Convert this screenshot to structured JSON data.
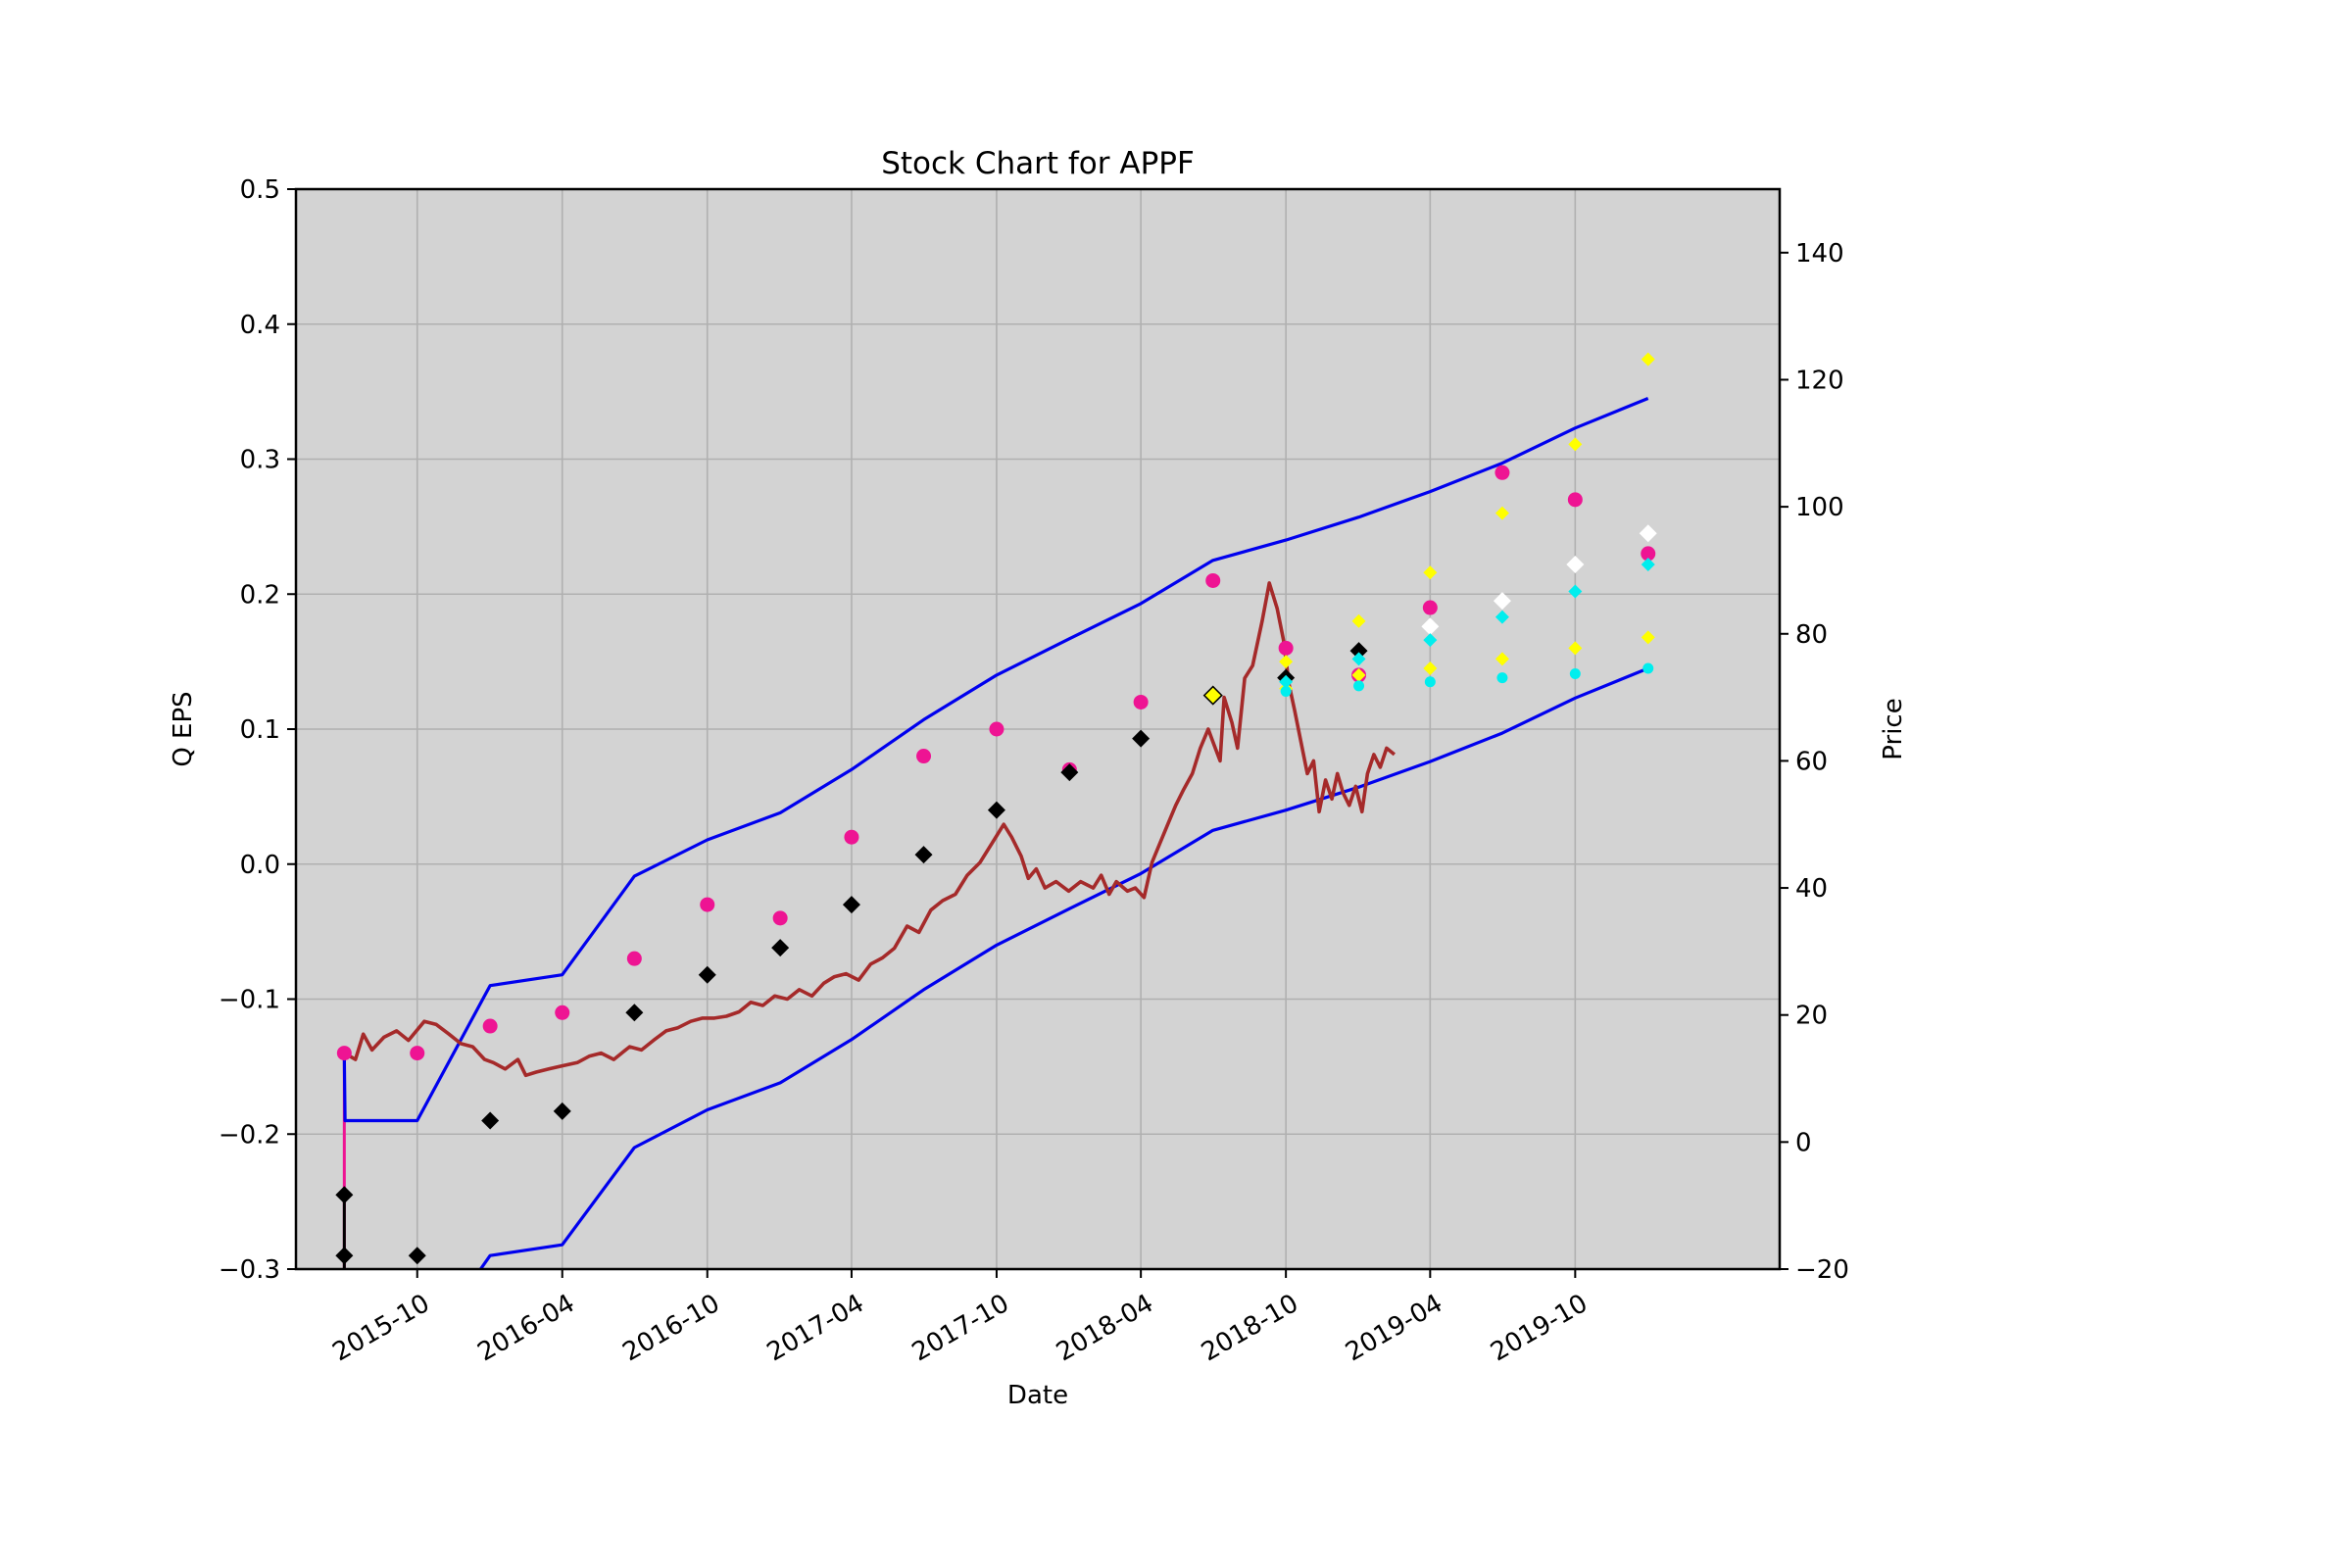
{
  "chart_data": {
    "type": "line",
    "title": "Stock Chart for APPF",
    "xlabel": "Date",
    "ylabel": "Q EPS",
    "y2label": "Price",
    "ylim": [
      -0.3,
      0.5
    ],
    "y2lim": [
      -20,
      150
    ],
    "xlim": [
      "2015-05-01",
      "2020-06-15"
    ],
    "grid": true,
    "background": "#d3d3d3",
    "y_ticks": [
      -0.3,
      -0.2,
      -0.1,
      0.0,
      0.1,
      0.2,
      0.3,
      0.4,
      0.5
    ],
    "y_tick_labels": [
      "−0.3",
      "−0.2",
      "−0.1",
      "0.0",
      "0.1",
      "0.2",
      "0.3",
      "0.4",
      "0.5"
    ],
    "y2_ticks": [
      -20,
      0,
      20,
      40,
      60,
      80,
      100,
      120,
      140
    ],
    "y2_tick_labels": [
      "−20",
      "0",
      "20",
      "40",
      "60",
      "80",
      "100",
      "120",
      "140"
    ],
    "x_ticks": [
      "2015-10-01",
      "2016-04-01",
      "2016-10-01",
      "2017-04-01",
      "2017-10-01",
      "2018-04-01",
      "2018-10-01",
      "2019-04-01",
      "2019-10-01"
    ],
    "x_tick_labels": [
      "2015-10",
      "2016-04",
      "2016-10",
      "2017-04",
      "2017-10",
      "2018-04",
      "2018-10",
      "2019-04",
      "2019-10"
    ],
    "series": [
      {
        "role": "eps_upper_band",
        "axis": "left",
        "color": "#0000ee",
        "kind": "line",
        "points": [
          [
            "2015-07-01",
            -0.14
          ],
          [
            "2015-07-02",
            -0.19
          ],
          [
            "2015-10-01",
            -0.19
          ],
          [
            "2016-01-01",
            -0.09
          ],
          [
            "2016-04-01",
            -0.082
          ],
          [
            "2016-07-01",
            -0.009
          ],
          [
            "2016-10-01",
            0.018
          ],
          [
            "2017-01-01",
            0.038
          ],
          [
            "2017-04-01",
            0.07
          ],
          [
            "2017-07-01",
            0.107
          ],
          [
            "2017-10-01",
            0.14
          ],
          [
            "2018-01-01",
            0.167
          ],
          [
            "2018-04-01",
            0.193
          ],
          [
            "2018-07-01",
            0.225
          ],
          [
            "2018-10-01",
            0.24
          ],
          [
            "2019-01-01",
            0.257
          ],
          [
            "2019-04-01",
            0.276
          ],
          [
            "2019-07-01",
            0.297
          ],
          [
            "2019-10-01",
            0.323
          ],
          [
            "2020-01-01",
            0.345
          ]
        ]
      },
      {
        "role": "eps_lower_band",
        "axis": "left",
        "color": "#0000ee",
        "kind": "line",
        "points": [
          [
            "2015-12-20",
            -0.3
          ],
          [
            "2016-01-01",
            -0.29
          ],
          [
            "2016-04-01",
            -0.282
          ],
          [
            "2016-07-01",
            -0.21
          ],
          [
            "2016-10-01",
            -0.182
          ],
          [
            "2017-01-01",
            -0.162
          ],
          [
            "2017-04-01",
            -0.13
          ],
          [
            "2017-07-01",
            -0.093
          ],
          [
            "2017-10-01",
            -0.06
          ],
          [
            "2018-01-01",
            -0.033
          ],
          [
            "2018-04-01",
            -0.007
          ],
          [
            "2018-07-01",
            0.025
          ],
          [
            "2018-10-01",
            0.04
          ],
          [
            "2019-01-01",
            0.057
          ],
          [
            "2019-04-01",
            0.076
          ],
          [
            "2019-07-01",
            0.097
          ],
          [
            "2019-10-01",
            0.123
          ],
          [
            "2020-01-01",
            0.145
          ]
        ]
      },
      {
        "role": "price",
        "axis": "right",
        "color": "#a52a2a",
        "kind": "line",
        "points": [
          [
            "2015-07-01",
            14
          ],
          [
            "2015-07-15",
            13
          ],
          [
            "2015-07-25",
            17
          ],
          [
            "2015-08-05",
            14.5
          ],
          [
            "2015-08-20",
            16.5
          ],
          [
            "2015-09-05",
            17.5
          ],
          [
            "2015-09-20",
            16
          ],
          [
            "2015-10-10",
            19
          ],
          [
            "2015-10-25",
            18.5
          ],
          [
            "2015-11-10",
            17
          ],
          [
            "2015-11-25",
            15.5
          ],
          [
            "2015-12-10",
            15
          ],
          [
            "2015-12-25",
            13
          ],
          [
            "2016-01-05",
            12.5
          ],
          [
            "2016-01-20",
            11.5
          ],
          [
            "2016-02-05",
            13
          ],
          [
            "2016-02-15",
            10.5
          ],
          [
            "2016-02-28",
            11
          ],
          [
            "2016-03-15",
            11.5
          ],
          [
            "2016-04-01",
            12
          ],
          [
            "2016-04-20",
            12.5
          ],
          [
            "2016-05-05",
            13.5
          ],
          [
            "2016-05-20",
            14
          ],
          [
            "2016-06-05",
            13
          ],
          [
            "2016-06-25",
            15
          ],
          [
            "2016-07-10",
            14.5
          ],
          [
            "2016-07-25",
            16
          ],
          [
            "2016-08-10",
            17.5
          ],
          [
            "2016-08-25",
            18
          ],
          [
            "2016-09-10",
            19
          ],
          [
            "2016-09-25",
            19.5
          ],
          [
            "2016-10-10",
            19.5
          ],
          [
            "2016-10-25",
            19.8
          ],
          [
            "2016-11-10",
            20.5
          ],
          [
            "2016-11-25",
            22
          ],
          [
            "2016-12-10",
            21.5
          ],
          [
            "2016-12-25",
            23
          ],
          [
            "2017-01-10",
            22.5
          ],
          [
            "2017-01-25",
            24
          ],
          [
            "2017-02-10",
            23
          ],
          [
            "2017-02-25",
            25
          ],
          [
            "2017-03-10",
            26
          ],
          [
            "2017-03-25",
            26.5
          ],
          [
            "2017-04-10",
            25.5
          ],
          [
            "2017-04-25",
            28
          ],
          [
            "2017-05-10",
            29
          ],
          [
            "2017-05-25",
            30.5
          ],
          [
            "2017-06-10",
            34
          ],
          [
            "2017-06-25",
            33
          ],
          [
            "2017-07-10",
            36.5
          ],
          [
            "2017-07-25",
            38
          ],
          [
            "2017-08-10",
            39
          ],
          [
            "2017-08-25",
            42
          ],
          [
            "2017-09-10",
            44
          ],
          [
            "2017-09-25",
            47
          ],
          [
            "2017-10-10",
            50
          ],
          [
            "2017-10-20",
            48
          ],
          [
            "2017-11-01",
            45
          ],
          [
            "2017-11-10",
            41.5
          ],
          [
            "2017-11-20",
            43
          ],
          [
            "2017-12-01",
            40
          ],
          [
            "2017-12-15",
            41
          ],
          [
            "2017-12-31",
            39.5
          ],
          [
            "2018-01-15",
            41
          ],
          [
            "2018-01-31",
            40
          ],
          [
            "2018-02-10",
            42
          ],
          [
            "2018-02-20",
            39
          ],
          [
            "2018-03-01",
            41
          ],
          [
            "2018-03-15",
            39.5
          ],
          [
            "2018-03-25",
            40
          ],
          [
            "2018-04-05",
            38.5
          ],
          [
            "2018-04-15",
            44
          ],
          [
            "2018-04-25",
            47
          ],
          [
            "2018-05-05",
            50
          ],
          [
            "2018-05-15",
            53
          ],
          [
            "2018-05-25",
            55.5
          ],
          [
            "2018-06-05",
            58
          ],
          [
            "2018-06-15",
            62
          ],
          [
            "2018-06-25",
            65
          ],
          [
            "2018-07-01",
            63
          ],
          [
            "2018-07-10",
            60
          ],
          [
            "2018-07-15",
            70
          ],
          [
            "2018-07-25",
            66
          ],
          [
            "2018-08-01",
            62
          ],
          [
            "2018-08-10",
            73
          ],
          [
            "2018-08-20",
            75
          ],
          [
            "2018-09-01",
            82
          ],
          [
            "2018-09-10",
            88
          ],
          [
            "2018-09-20",
            84
          ],
          [
            "2018-09-28",
            79
          ],
          [
            "2018-10-05",
            72
          ],
          [
            "2018-10-12",
            68
          ],
          [
            "2018-10-20",
            63
          ],
          [
            "2018-10-28",
            58
          ],
          [
            "2018-11-05",
            60
          ],
          [
            "2018-11-12",
            52
          ],
          [
            "2018-11-20",
            57
          ],
          [
            "2018-11-28",
            54
          ],
          [
            "2018-12-05",
            58
          ],
          [
            "2018-12-12",
            55
          ],
          [
            "2018-12-20",
            53
          ],
          [
            "2018-12-28",
            56
          ],
          [
            "2019-01-05",
            52
          ],
          [
            "2019-01-12",
            58
          ],
          [
            "2019-01-20",
            61
          ],
          [
            "2019-01-28",
            59
          ],
          [
            "2019-02-05",
            62
          ],
          [
            "2019-02-15",
            61
          ]
        ]
      },
      {
        "role": "magenta_dots",
        "axis": "left",
        "color": "#ee1493",
        "kind": "circle",
        "points": [
          [
            "2015-07-01",
            -0.14
          ],
          [
            "2015-10-01",
            -0.14
          ],
          [
            "2016-01-01",
            -0.12
          ],
          [
            "2016-04-01",
            -0.11
          ],
          [
            "2016-07-01",
            -0.07
          ],
          [
            "2016-10-01",
            -0.03
          ],
          [
            "2017-01-01",
            -0.04
          ],
          [
            "2017-04-01",
            0.02
          ],
          [
            "2017-07-01",
            0.08
          ],
          [
            "2017-10-01",
            0.1
          ],
          [
            "2018-01-01",
            0.07
          ],
          [
            "2018-04-01",
            0.12
          ],
          [
            "2018-07-01",
            0.21
          ],
          [
            "2018-10-01",
            0.16
          ],
          [
            "2019-01-01",
            0.14
          ],
          [
            "2019-04-01",
            0.19
          ],
          [
            "2019-07-01",
            0.29
          ],
          [
            "2019-10-01",
            0.27
          ],
          [
            "2020-01-01",
            0.23
          ]
        ]
      },
      {
        "role": "black_diamonds",
        "axis": "left",
        "color": "#000000",
        "kind": "diamond",
        "points": [
          [
            "2015-07-01",
            -0.245
          ],
          [
            "2015-07-01",
            -0.29
          ],
          [
            "2015-10-01",
            -0.29
          ],
          [
            "2016-01-01",
            -0.19
          ],
          [
            "2016-04-01",
            -0.183
          ],
          [
            "2016-07-01",
            -0.11
          ],
          [
            "2016-10-01",
            -0.082
          ],
          [
            "2017-01-01",
            -0.062
          ],
          [
            "2017-04-01",
            -0.03
          ],
          [
            "2017-07-01",
            0.007
          ],
          [
            "2017-10-01",
            0.04
          ],
          [
            "2018-01-01",
            0.068
          ],
          [
            "2018-04-01",
            0.093
          ],
          [
            "2018-10-01",
            0.138
          ],
          [
            "2019-01-01",
            0.158
          ]
        ]
      },
      {
        "role": "yellow_diamond_outlined",
        "axis": "left",
        "color": "#ffff00",
        "kind": "diamond-outlined",
        "points": [
          [
            "2018-07-01",
            0.125
          ]
        ]
      },
      {
        "role": "yellow_high_estimate",
        "axis": "left",
        "color": "#ffff00",
        "kind": "small-diamond",
        "points": [
          [
            "2018-10-01",
            0.15
          ],
          [
            "2019-01-01",
            0.18
          ],
          [
            "2019-04-01",
            0.216
          ],
          [
            "2019-07-01",
            0.26
          ],
          [
            "2019-10-01",
            0.311
          ],
          [
            "2020-01-01",
            0.374
          ]
        ]
      },
      {
        "role": "yellow_low_estimate",
        "axis": "left",
        "color": "#ffff00",
        "kind": "small-diamond",
        "points": [
          [
            "2018-10-01",
            0.13
          ],
          [
            "2019-01-01",
            0.14
          ],
          [
            "2019-04-01",
            0.145
          ],
          [
            "2019-07-01",
            0.152
          ],
          [
            "2019-10-01",
            0.16
          ],
          [
            "2020-01-01",
            0.168
          ]
        ]
      },
      {
        "role": "white_diamonds",
        "axis": "left",
        "color": "#ffffff",
        "kind": "diamond",
        "points": [
          [
            "2019-04-01",
            0.176
          ],
          [
            "2019-07-01",
            0.195
          ],
          [
            "2019-10-01",
            0.222
          ],
          [
            "2020-01-01",
            0.245
          ]
        ]
      },
      {
        "role": "cyan_upper",
        "axis": "left",
        "color": "#00eeee",
        "kind": "small-diamond",
        "points": [
          [
            "2018-10-01",
            0.135
          ],
          [
            "2019-01-01",
            0.152
          ],
          [
            "2019-04-01",
            0.166
          ],
          [
            "2019-07-01",
            0.183
          ],
          [
            "2019-10-01",
            0.202
          ],
          [
            "2020-01-01",
            0.222
          ]
        ]
      },
      {
        "role": "cyan_lower",
        "axis": "left",
        "color": "#00eeee",
        "kind": "small-circle",
        "points": [
          [
            "2018-10-01",
            0.128
          ],
          [
            "2019-01-01",
            0.132
          ],
          [
            "2019-04-01",
            0.135
          ],
          [
            "2019-07-01",
            0.138
          ],
          [
            "2019-10-01",
            0.141
          ],
          [
            "2020-01-01",
            0.145
          ]
        ]
      }
    ],
    "vertical_segments": [
      {
        "x": "2015-07-01",
        "y_from": -0.3,
        "y_to": -0.14,
        "color": "#ee1493"
      },
      {
        "x": "2015-07-01",
        "y_from": -0.3,
        "y_to": -0.245,
        "color": "#000000"
      }
    ]
  }
}
